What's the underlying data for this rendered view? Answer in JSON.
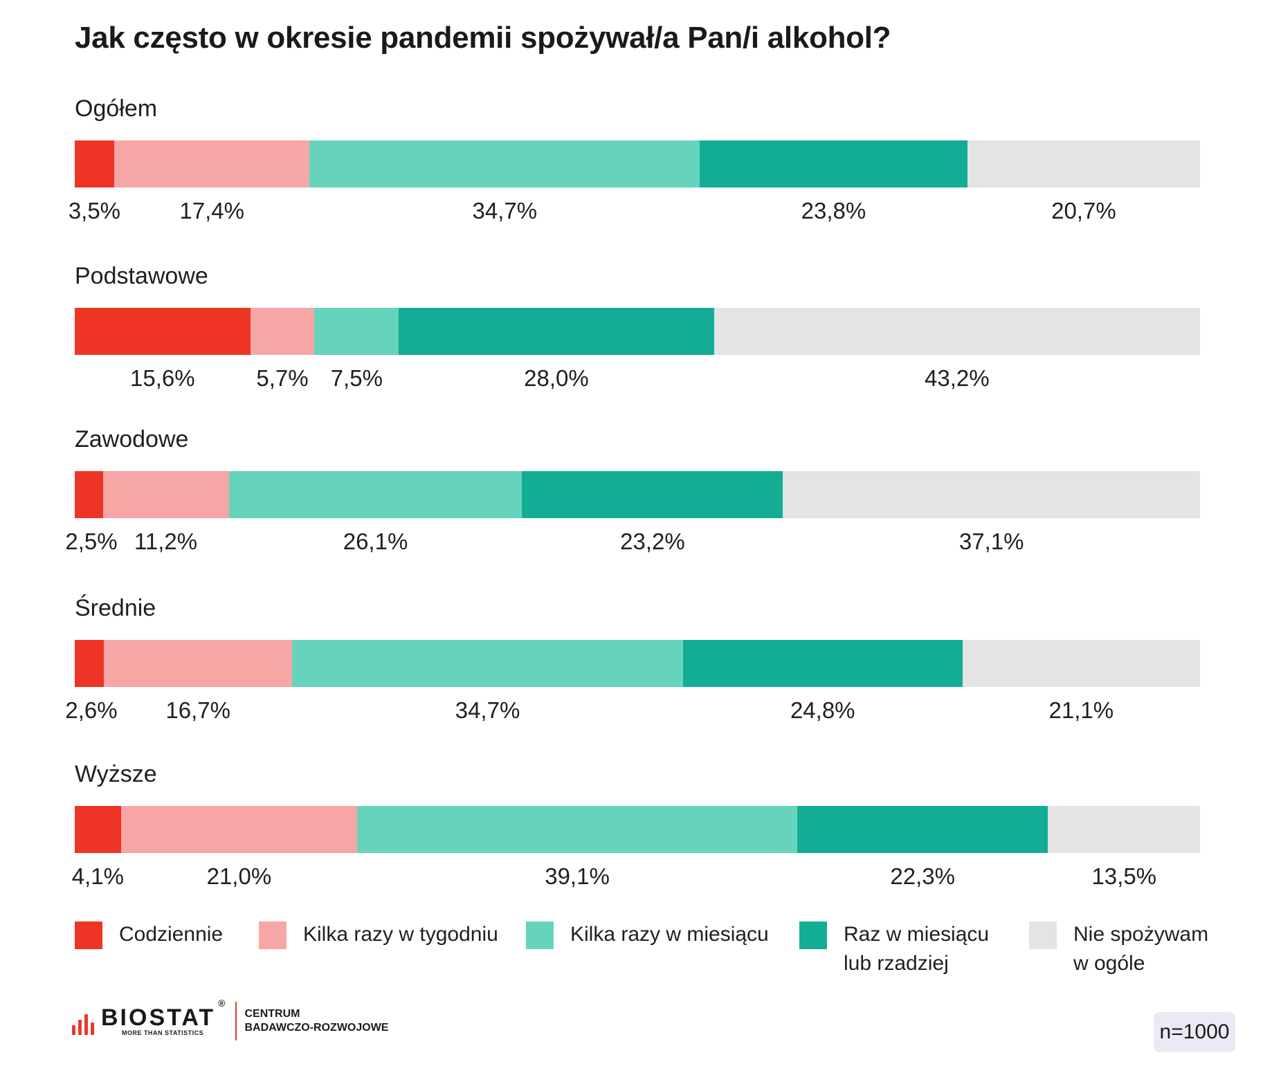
{
  "chart_data": {
    "type": "bar",
    "orientation": "horizontal",
    "stacked": true,
    "normalized": true,
    "title": "Jak często w okresie pandemii spożywał/a Pan/i alkohol?",
    "categories": [
      "Ogółem",
      "Podstawowe",
      "Zawodowe",
      "Średnie",
      "Wyższe"
    ],
    "series": [
      {
        "name": "Codziennie",
        "color": "#ee3424",
        "values": [
          3.5,
          15.6,
          2.5,
          2.6,
          4.1
        ],
        "labels": [
          "3,5%",
          "15,6%",
          "2,5%",
          "2,6%",
          "4,1%"
        ]
      },
      {
        "name": "Kilka razy w tygodniu",
        "color": "#f7a6a6",
        "values": [
          17.4,
          5.7,
          11.2,
          16.7,
          21.0
        ],
        "labels": [
          "17,4%",
          "5,7%",
          "11,2%",
          "16,7%",
          "21,0%"
        ]
      },
      {
        "name": "Kilka razy w miesiącu",
        "color": "#66d4bd",
        "values": [
          34.7,
          7.5,
          26.1,
          34.7,
          39.1
        ],
        "labels": [
          "34,7%",
          "7,5%",
          "26,1%",
          "34,7%",
          "39,1%"
        ]
      },
      {
        "name": "Raz w miesiącu lub rzadziej",
        "color": "#13ad96",
        "values": [
          23.8,
          28.0,
          23.2,
          24.8,
          22.3
        ],
        "labels": [
          "23,8%",
          "28,0%",
          "23,2%",
          "24,8%",
          "22,3%"
        ]
      },
      {
        "name": "Nie spożywam w ogóle",
        "color": "#e4e4e4",
        "values": [
          20.7,
          43.2,
          37.1,
          21.1,
          13.5
        ],
        "labels": [
          "20,7%",
          "43,2%",
          "37,1%",
          "21,1%",
          "13,5%"
        ]
      }
    ],
    "legend": {
      "placement": "bottom",
      "items": [
        {
          "lines": [
            "Codziennie"
          ]
        },
        {
          "lines": [
            "Kilka razy w tygodniu"
          ]
        },
        {
          "lines": [
            "Kilka razy w miesiącu"
          ]
        },
        {
          "lines": [
            "Raz w miesiącu",
            "lub rzadziej"
          ]
        },
        {
          "lines": [
            "Nie spożywam",
            "w ogóle"
          ]
        }
      ]
    },
    "grid": false
  },
  "footer": {
    "logo_text": "BIOSTAT",
    "logo_tagline": "MORE THAN STATISTICS",
    "logo_reg": "®",
    "center_line1": "CENTRUM",
    "center_line2": "BADAWCZO-ROZWOJOWE",
    "sample_size": "n=1000"
  }
}
